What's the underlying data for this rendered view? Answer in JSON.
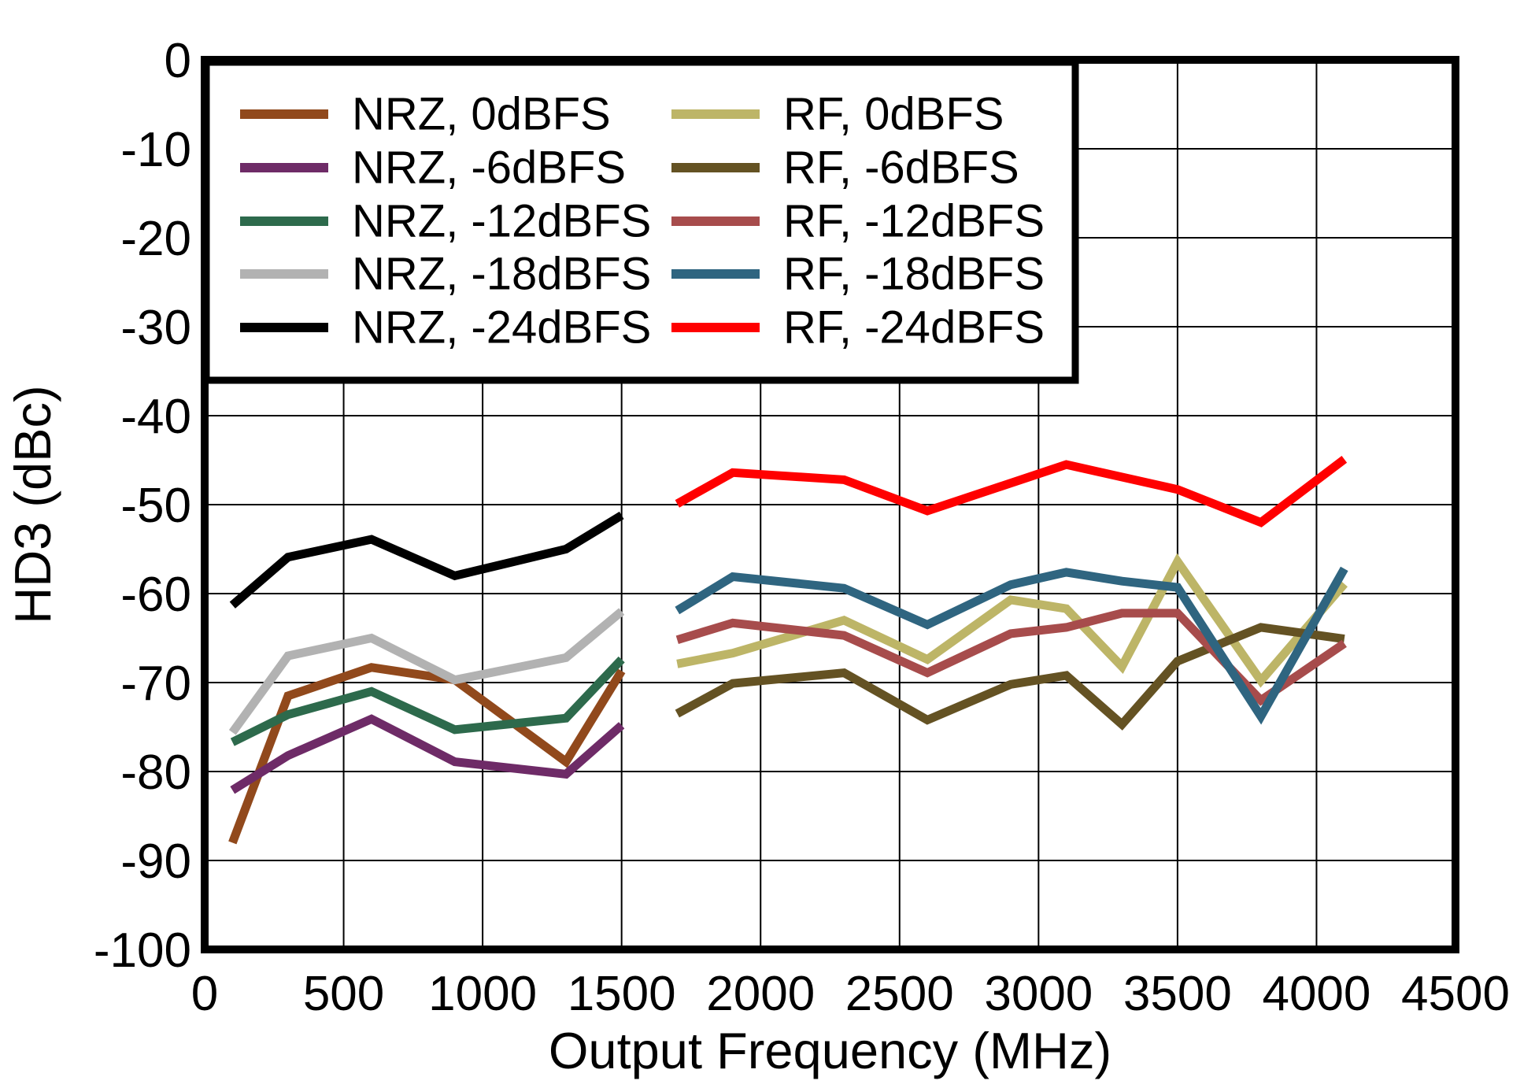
{
  "chart_data": {
    "type": "line",
    "title": "",
    "xlabel": "Output Frequency (MHz)",
    "ylabel": "HD3 (dBc)",
    "xlim": [
      0,
      4500
    ],
    "ylim": [
      -100,
      0
    ],
    "x_ticks": [
      0,
      500,
      1000,
      1500,
      2000,
      2500,
      3000,
      3500,
      4000,
      4500
    ],
    "y_ticks": [
      0,
      -10,
      -20,
      -30,
      -40,
      -50,
      -60,
      -70,
      -80,
      -90,
      -100
    ],
    "grid": true,
    "grid_color": "#000000",
    "legend_position": "top-left",
    "series": [
      {
        "name": "NRZ, 0dBFS",
        "color": "#91491C",
        "x": [
          100,
          300,
          600,
          900,
          1300,
          1500
        ],
        "y": [
          -88.0,
          -71.5,
          -68.3,
          -69.7,
          -78.9,
          -68.7
        ]
      },
      {
        "name": "NRZ, -6dBFS",
        "color": "#6E2B67",
        "x": [
          100,
          300,
          600,
          900,
          1300,
          1500
        ],
        "y": [
          -82.1,
          -78.2,
          -74.1,
          -78.9,
          -80.3,
          -74.8
        ]
      },
      {
        "name": "NRZ, -12dBFS",
        "color": "#2D6A4C",
        "x": [
          100,
          300,
          600,
          900,
          1300,
          1500
        ],
        "y": [
          -76.7,
          -73.6,
          -71.0,
          -75.3,
          -74.0,
          -67.4
        ]
      },
      {
        "name": "NRZ, -18dBFS",
        "color": "#B2B2B2",
        "x": [
          100,
          300,
          600,
          900,
          1300,
          1500
        ],
        "y": [
          -75.6,
          -67.0,
          -65.0,
          -69.7,
          -67.2,
          -62.0
        ]
      },
      {
        "name": "NRZ, -24dBFS",
        "color": "#000000",
        "x": [
          100,
          300,
          600,
          900,
          1300,
          1500
        ],
        "y": [
          -61.3,
          -55.9,
          -53.9,
          -58.0,
          -55.0,
          -51.2
        ]
      },
      {
        "name": "RF, 0dBFS",
        "color": "#BDB567",
        "x": [
          1700,
          1900,
          2300,
          2600,
          2900,
          3100,
          3300,
          3500,
          3800,
          4100
        ],
        "y": [
          -67.9,
          -66.7,
          -63.0,
          -67.4,
          -60.7,
          -61.7,
          -68.2,
          -56.4,
          -69.8,
          -58.9
        ]
      },
      {
        "name": "RF, -6dBFS",
        "color": "#645223",
        "x": [
          1700,
          1900,
          2300,
          2600,
          2900,
          3100,
          3300,
          3500,
          3800,
          4100
        ],
        "y": [
          -73.5,
          -70.1,
          -68.9,
          -74.2,
          -70.2,
          -69.2,
          -74.7,
          -67.6,
          -63.8,
          -65.1
        ]
      },
      {
        "name": "RF, -12dBFS",
        "color": "#A74C4C",
        "x": [
          1700,
          1900,
          2300,
          2600,
          2900,
          3100,
          3300,
          3500,
          3800,
          4100
        ],
        "y": [
          -65.2,
          -63.3,
          -64.7,
          -68.9,
          -64.5,
          -63.8,
          -62.2,
          -62.2,
          -72.0,
          -65.6
        ]
      },
      {
        "name": "RF, -18dBFS",
        "color": "#2F6580",
        "x": [
          1700,
          1900,
          2300,
          2600,
          2900,
          3100,
          3300,
          3500,
          3800,
          4100
        ],
        "y": [
          -61.9,
          -58.1,
          -59.4,
          -63.5,
          -59.0,
          -57.6,
          -58.6,
          -59.3,
          -73.8,
          -57.2
        ]
      },
      {
        "name": "RF, -24dBFS",
        "color": "#FF0000",
        "x": [
          1700,
          1900,
          2300,
          2600,
          3100,
          3500,
          3800,
          4100
        ],
        "y": [
          -49.9,
          -46.4,
          -47.2,
          -50.7,
          -45.5,
          -48.3,
          -52.0,
          -44.9
        ]
      }
    ]
  }
}
